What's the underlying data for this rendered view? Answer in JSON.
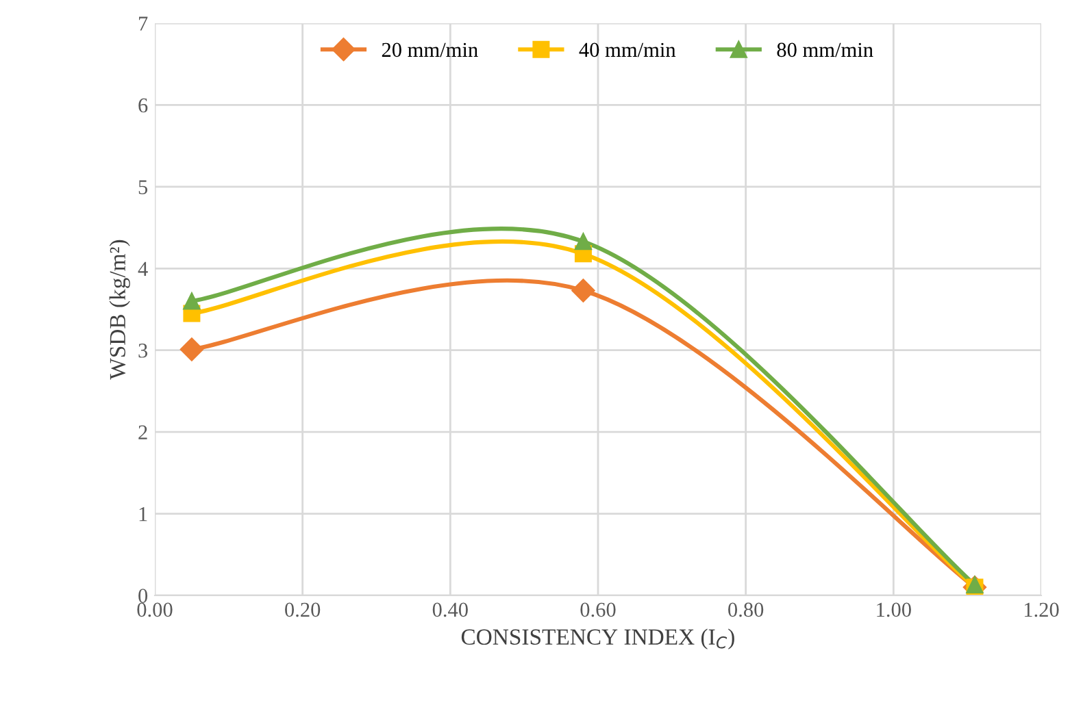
{
  "chart_data": {
    "type": "line",
    "xlabel": "CONSISTENCY INDEX (I$_{C}$)",
    "ylabel": "WSDB (kg/m²)",
    "xlim": [
      0,
      1.2
    ],
    "xticks": [
      {
        "value": 0,
        "label": "0.00"
      },
      {
        "value": 0.2,
        "label": "0.20"
      },
      {
        "value": 0.4,
        "label": "0.40"
      },
      {
        "value": 0.6,
        "label": "0.60"
      },
      {
        "value": 0.8,
        "label": "0.80"
      },
      {
        "value": 1.0,
        "label": "1.00"
      },
      {
        "value": 1.2,
        "label": "1.20"
      }
    ],
    "ylim": [
      0,
      7
    ],
    "yticks": [
      0,
      1,
      2,
      3,
      4,
      5,
      6,
      7
    ],
    "grid": true,
    "legend": "top",
    "line_style": "solid",
    "x": [
      0.05,
      0.58,
      1.11
    ],
    "series": [
      {
        "name": "20 mm/min",
        "color": "#ed7d31",
        "marker": "diamond",
        "values": [
          3.01,
          3.73,
          0.1
        ]
      },
      {
        "name": "40 mm/min",
        "color": "#ffc000",
        "marker": "square",
        "values": [
          3.45,
          4.18,
          0.1
        ]
      },
      {
        "name": "80 mm/min",
        "color": "#70ad47",
        "marker": "triangle",
        "values": [
          3.6,
          4.33,
          0.13
        ]
      }
    ]
  }
}
